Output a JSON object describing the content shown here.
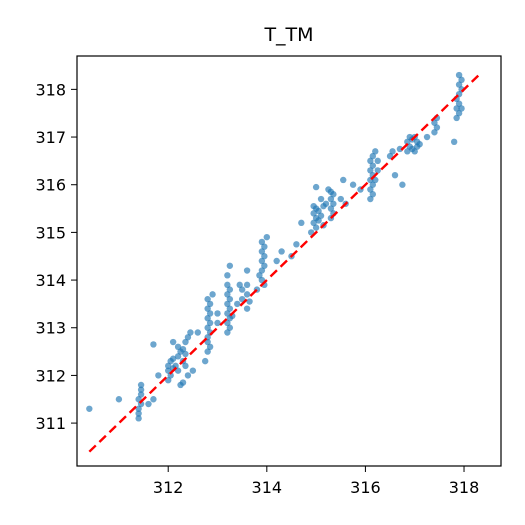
{
  "chart_data": {
    "type": "scatter",
    "title": "T_TM",
    "xlabel": "",
    "ylabel": "",
    "xlim": [
      310.15,
      318.75
    ],
    "ylim": [
      310.1,
      318.7
    ],
    "xticks": [
      312,
      314,
      316,
      318
    ],
    "yticks": [
      311,
      312,
      313,
      314,
      315,
      316,
      317,
      318
    ],
    "grid": false,
    "colors": {
      "points": "#1f77b4",
      "reference_line": "#ff0000",
      "axes": "#000000"
    },
    "reference_line": {
      "style": "dashed",
      "from": [
        310.4,
        310.4
      ],
      "to": [
        318.3,
        318.3
      ]
    },
    "points": [
      [
        310.4,
        311.3
      ],
      [
        311.0,
        311.5
      ],
      [
        311.4,
        311.1
      ],
      [
        311.4,
        311.2
      ],
      [
        311.4,
        311.3
      ],
      [
        311.4,
        311.5
      ],
      [
        311.45,
        311.7
      ],
      [
        311.45,
        311.8
      ],
      [
        311.45,
        311.6
      ],
      [
        311.45,
        311.4
      ],
      [
        311.6,
        311.4
      ],
      [
        311.7,
        311.5
      ],
      [
        311.8,
        312.0
      ],
      [
        311.7,
        312.65
      ],
      [
        312.0,
        312.1
      ],
      [
        312.0,
        312.2
      ],
      [
        312.05,
        312.3
      ],
      [
        312.05,
        312.0
      ],
      [
        312.0,
        311.9
      ],
      [
        312.1,
        312.15
      ],
      [
        312.1,
        312.35
      ],
      [
        312.15,
        312.2
      ],
      [
        312.2,
        312.4
      ],
      [
        312.2,
        312.6
      ],
      [
        312.2,
        312.1
      ],
      [
        312.25,
        312.5
      ],
      [
        312.25,
        311.8
      ],
      [
        312.3,
        312.3
      ],
      [
        312.3,
        312.55
      ],
      [
        312.35,
        312.7
      ],
      [
        312.35,
        312.2
      ],
      [
        312.35,
        312.45
      ],
      [
        312.4,
        312.8
      ],
      [
        312.4,
        312.0
      ],
      [
        312.3,
        311.85
      ],
      [
        312.1,
        312.7
      ],
      [
        312.45,
        312.9
      ],
      [
        312.5,
        312.1
      ],
      [
        312.6,
        312.9
      ],
      [
        312.8,
        312.5
      ],
      [
        312.8,
        312.7
      ],
      [
        312.8,
        312.8
      ],
      [
        312.8,
        313.0
      ],
      [
        312.8,
        313.2
      ],
      [
        312.8,
        313.4
      ],
      [
        312.8,
        313.6
      ],
      [
        312.85,
        312.6
      ],
      [
        312.85,
        312.9
      ],
      [
        312.85,
        313.1
      ],
      [
        312.85,
        313.3
      ],
      [
        312.85,
        313.5
      ],
      [
        312.9,
        313.7
      ],
      [
        312.75,
        312.3
      ],
      [
        313.0,
        313.1
      ],
      [
        313.0,
        313.3
      ],
      [
        313.2,
        312.9
      ],
      [
        313.2,
        313.1
      ],
      [
        313.2,
        313.3
      ],
      [
        313.2,
        313.5
      ],
      [
        313.2,
        313.7
      ],
      [
        313.2,
        313.9
      ],
      [
        313.2,
        314.1
      ],
      [
        313.25,
        313.0
      ],
      [
        313.25,
        313.2
      ],
      [
        313.25,
        313.4
      ],
      [
        313.25,
        313.6
      ],
      [
        313.25,
        313.8
      ],
      [
        313.25,
        314.3
      ],
      [
        313.3,
        313.25
      ],
      [
        313.4,
        313.5
      ],
      [
        313.45,
        313.9
      ],
      [
        313.5,
        313.6
      ],
      [
        313.5,
        313.8
      ],
      [
        313.6,
        313.4
      ],
      [
        313.6,
        313.7
      ],
      [
        313.6,
        313.9
      ],
      [
        313.6,
        314.2
      ],
      [
        313.65,
        313.55
      ],
      [
        313.8,
        313.8
      ],
      [
        313.85,
        314.1
      ],
      [
        313.9,
        314.0
      ],
      [
        313.9,
        314.2
      ],
      [
        313.9,
        314.4
      ],
      [
        313.9,
        314.6
      ],
      [
        313.9,
        314.8
      ],
      [
        313.95,
        313.9
      ],
      [
        313.95,
        314.3
      ],
      [
        313.95,
        314.5
      ],
      [
        313.95,
        314.7
      ],
      [
        314.0,
        314.9
      ],
      [
        314.2,
        314.4
      ],
      [
        314.3,
        314.6
      ],
      [
        314.5,
        314.5
      ],
      [
        314.6,
        314.75
      ],
      [
        314.7,
        315.2
      ],
      [
        314.9,
        315.0
      ],
      [
        314.95,
        315.2
      ],
      [
        314.95,
        315.4
      ],
      [
        314.95,
        315.55
      ],
      [
        315.0,
        315.1
      ],
      [
        315.0,
        315.3
      ],
      [
        315.0,
        315.5
      ],
      [
        315.0,
        315.95
      ],
      [
        315.05,
        315.25
      ],
      [
        315.05,
        315.45
      ],
      [
        315.1,
        315.35
      ],
      [
        315.1,
        315.7
      ],
      [
        315.15,
        315.15
      ],
      [
        315.15,
        315.55
      ],
      [
        315.2,
        315.6
      ],
      [
        315.25,
        315.9
      ],
      [
        315.3,
        315.3
      ],
      [
        315.3,
        315.5
      ],
      [
        315.3,
        315.7
      ],
      [
        315.3,
        315.85
      ],
      [
        315.35,
        315.4
      ],
      [
        315.35,
        315.6
      ],
      [
        315.35,
        315.8
      ],
      [
        315.5,
        315.7
      ],
      [
        315.55,
        316.1
      ],
      [
        315.6,
        315.6
      ],
      [
        315.75,
        316.0
      ],
      [
        315.9,
        315.9
      ],
      [
        316.1,
        315.7
      ],
      [
        316.1,
        315.9
      ],
      [
        316.1,
        316.1
      ],
      [
        316.1,
        316.3
      ],
      [
        316.1,
        316.5
      ],
      [
        316.15,
        315.8
      ],
      [
        316.15,
        316.0
      ],
      [
        316.15,
        316.2
      ],
      [
        316.15,
        316.4
      ],
      [
        316.15,
        316.6
      ],
      [
        316.2,
        316.7
      ],
      [
        316.2,
        316.1
      ],
      [
        316.25,
        316.3
      ],
      [
        316.25,
        316.5
      ],
      [
        316.5,
        316.6
      ],
      [
        316.55,
        316.7
      ],
      [
        316.6,
        316.2
      ],
      [
        316.7,
        316.75
      ],
      [
        316.75,
        316.0
      ],
      [
        316.85,
        316.7
      ],
      [
        316.85,
        316.9
      ],
      [
        316.9,
        316.8
      ],
      [
        316.9,
        317.0
      ],
      [
        316.95,
        316.75
      ],
      [
        316.95,
        316.95
      ],
      [
        317.0,
        317.0
      ],
      [
        317.0,
        316.7
      ],
      [
        317.05,
        316.8
      ],
      [
        317.05,
        316.9
      ],
      [
        317.1,
        316.85
      ],
      [
        317.25,
        317.0
      ],
      [
        317.4,
        317.1
      ],
      [
        317.4,
        317.3
      ],
      [
        317.45,
        317.2
      ],
      [
        317.45,
        317.4
      ],
      [
        317.8,
        316.9
      ],
      [
        317.85,
        317.4
      ],
      [
        317.85,
        317.6
      ],
      [
        317.85,
        317.8
      ],
      [
        317.9,
        317.5
      ],
      [
        317.9,
        317.7
      ],
      [
        317.9,
        317.9
      ],
      [
        317.9,
        318.1
      ],
      [
        317.9,
        318.3
      ],
      [
        317.95,
        317.6
      ],
      [
        317.95,
        318.0
      ],
      [
        317.95,
        318.2
      ]
    ]
  }
}
